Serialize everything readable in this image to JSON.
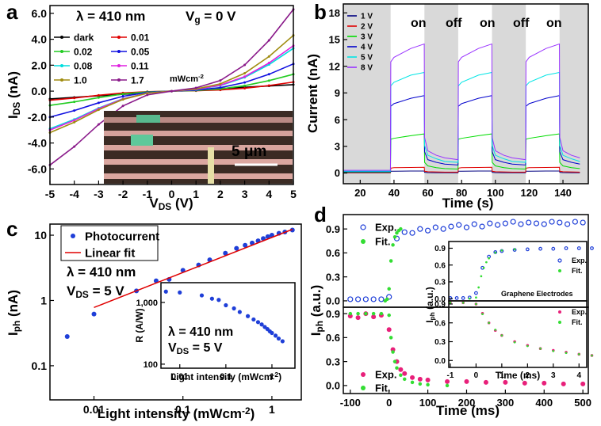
{
  "chart_data": [
    {
      "type": "line",
      "panel": "a",
      "x_label": [
        "V",
        {
          "sub": "DS"
        },
        " (V)"
      ],
      "y_label": [
        "I",
        {
          "sub": "DS"
        },
        " (nA)"
      ],
      "annotations": [
        "λ = 410 nm",
        [
          "V",
          {
            "sub": "g"
          },
          " = 0 V"
        ],
        [
          "mWcm",
          {
            "sup": "-2"
          }
        ],
        "5 μm"
      ],
      "xlim": [
        -5,
        5
      ],
      "ylim": [
        -7.2,
        6.6
      ],
      "xticks": [
        -5,
        -4,
        -3,
        -2,
        -1,
        0,
        1,
        2,
        3,
        4,
        5
      ],
      "yticks": [
        {
          "value": -6,
          "label": "-6.0"
        },
        {
          "value": -4,
          "label": "-4.0"
        },
        {
          "value": -2,
          "label": "-2.0"
        },
        {
          "value": 0,
          "label": "0.0"
        },
        {
          "value": 2,
          "label": "2.0"
        },
        {
          "value": 4,
          "label": "4.0"
        },
        {
          "value": 6,
          "label": "6.0"
        }
      ],
      "x": [
        -5,
        -4,
        -3,
        -2,
        -1,
        0,
        1,
        2,
        3,
        4,
        5
      ],
      "series": [
        {
          "name": "dark",
          "color": "#000000",
          "marker": "dot",
          "values": [
            -0.6,
            -0.48,
            -0.36,
            -0.24,
            -0.12,
            0,
            0.1,
            0.2,
            0.3,
            0.4,
            0.5
          ]
        },
        {
          "name": "0.01",
          "color": "#e00000",
          "marker": "dot",
          "values": [
            -0.7,
            -0.53,
            -0.32,
            -0.14,
            -0.04,
            0,
            0.03,
            0.09,
            0.22,
            0.43,
            0.7
          ]
        },
        {
          "name": "0.02",
          "color": "#22cc22",
          "marker": "dot",
          "values": [
            -1.1,
            -0.83,
            -0.5,
            -0.22,
            -0.06,
            0,
            0.05,
            0.17,
            0.42,
            0.81,
            1.3
          ]
        },
        {
          "name": "0.05",
          "color": "#1010e0",
          "marker": "dot",
          "values": [
            -2.0,
            -1.5,
            -0.9,
            -0.4,
            -0.1,
            0,
            0.08,
            0.27,
            0.67,
            1.3,
            2.1
          ]
        },
        {
          "name": "0.08",
          "color": "#00dede",
          "marker": "dot",
          "values": [
            -2.9,
            -2.18,
            -1.31,
            -0.58,
            -0.15,
            0,
            0.13,
            0.43,
            1.06,
            2.05,
            3.3
          ]
        },
        {
          "name": "0.11",
          "color": "#e020e0",
          "marker": "dot",
          "values": [
            -3.0,
            -2.25,
            -1.35,
            -0.6,
            -0.15,
            0,
            0.14,
            0.46,
            1.12,
            2.17,
            3.5
          ]
        },
        {
          "name": "1.0",
          "color": "#a08c10",
          "marker": "dot",
          "values": [
            -3.2,
            -2.4,
            -1.44,
            -0.64,
            -0.16,
            0,
            0.17,
            0.56,
            1.38,
            2.67,
            4.3
          ]
        },
        {
          "name": "1.7",
          "color": "#8a1a8a",
          "marker": "dot",
          "values": [
            -5.7,
            -4.28,
            -2.57,
            -1.14,
            -0.29,
            0,
            0.25,
            0.82,
            2.02,
            3.91,
            6.3
          ]
        }
      ]
    },
    {
      "type": "line",
      "panel": "b",
      "x_label": "Time (s)",
      "y_label": "Current (nA)",
      "annotations": [
        "on",
        "off",
        "on",
        "off",
        "on"
      ],
      "xlim": [
        10,
        155
      ],
      "ylim": [
        -1.2,
        19
      ],
      "xticks": [
        20,
        40,
        60,
        80,
        100,
        120,
        140
      ],
      "yticks": [
        0,
        3,
        6,
        9,
        12,
        15,
        18
      ],
      "shaded": [
        [
          10,
          38
        ],
        [
          58,
          78
        ],
        [
          98,
          118
        ],
        [
          138,
          155
        ]
      ],
      "shade_color": "#d9d9d9",
      "x": [
        10,
        37.9,
        38.1,
        40,
        50,
        57.9,
        58.1,
        60,
        65,
        70,
        77.9,
        78.1,
        80,
        90,
        97.9,
        98.1,
        100,
        105,
        110,
        117.9,
        118.1,
        120,
        130,
        137.9,
        138.1,
        140,
        145,
        150
      ],
      "series": [
        {
          "name": "1 V",
          "color": "#000080",
          "values": [
            0.02,
            0.02,
            0.2,
            0.2,
            0.22,
            0.22,
            0.08,
            0.05,
            0.04,
            0.04,
            0.03,
            0.2,
            0.2,
            0.22,
            0.22,
            0.08,
            0.05,
            0.04,
            0.04,
            0.03,
            0.2,
            0.2,
            0.22,
            0.22,
            0.08,
            0.05,
            0.04,
            0.04
          ]
        },
        {
          "name": "2 V",
          "color": "#e00000",
          "values": [
            0.05,
            0.05,
            0.55,
            0.6,
            0.62,
            0.65,
            0.2,
            0.15,
            0.12,
            0.1,
            0.1,
            0.55,
            0.6,
            0.62,
            0.65,
            0.2,
            0.15,
            0.12,
            0.1,
            0.1,
            0.55,
            0.6,
            0.62,
            0.65,
            0.2,
            0.15,
            0.12,
            0.1
          ]
        },
        {
          "name": "3 V",
          "color": "#00dd00",
          "values": [
            0.1,
            0.1,
            3.8,
            3.9,
            4.2,
            4.4,
            1.2,
            0.8,
            0.6,
            0.5,
            0.45,
            3.8,
            3.9,
            4.2,
            4.4,
            1.2,
            0.8,
            0.6,
            0.5,
            0.45,
            3.8,
            3.9,
            4.2,
            4.4,
            1.2,
            0.8,
            0.6,
            0.5
          ]
        },
        {
          "name": "4 V",
          "color": "#0000cc",
          "values": [
            0.15,
            0.15,
            7.5,
            7.8,
            8.4,
            8.7,
            2.4,
            1.5,
            1.2,
            1,
            0.9,
            7.5,
            7.8,
            8.4,
            8.7,
            2.4,
            1.5,
            1.2,
            1,
            0.9,
            7.5,
            7.8,
            8.4,
            8.7,
            2.4,
            1.5,
            1.2,
            1
          ]
        },
        {
          "name": "5 V",
          "color": "#00e5e5",
          "values": [
            0.2,
            0.2,
            9.8,
            10.2,
            11,
            11.3,
            3.1,
            2,
            1.6,
            1.3,
            1.2,
            9.8,
            10.2,
            11,
            11.3,
            3.1,
            2,
            1.6,
            1.3,
            1.2,
            9.8,
            10.2,
            11,
            11.3,
            3.1,
            2,
            1.6,
            1.3
          ]
        },
        {
          "name": "8 V",
          "color": "#9933ff",
          "values": [
            0.3,
            0.3,
            12.5,
            13,
            14,
            14.5,
            4,
            2.5,
            2,
            1.7,
            1.5,
            12.5,
            13,
            14,
            14.5,
            4,
            2.5,
            2,
            1.7,
            1.5,
            12.5,
            13,
            14,
            14.5,
            4,
            2.5,
            2,
            1.7
          ]
        }
      ]
    },
    {
      "type": "scatter",
      "panel": "c",
      "x_label": [
        "Light intensity (mWcm",
        {
          "sup": "-2"
        },
        ")"
      ],
      "y_label": [
        "I",
        {
          "sub": "ph"
        },
        " (nA)"
      ],
      "annotations": [
        "λ = 410 nm",
        [
          "V",
          {
            "sub": "DS"
          },
          " = 5 V"
        ]
      ],
      "xlog": true,
      "ylog": true,
      "xlim": [
        0.0032,
        2.14
      ],
      "ylim": [
        0.03,
        14.8
      ],
      "xticks": [
        0.01,
        0.1,
        1
      ],
      "yticks": [
        0.1,
        1,
        10
      ],
      "series": [
        {
          "name": "Photocurrent",
          "color": "#1f3fd8",
          "marker": "circle",
          "line": false,
          "x": [
            0.005,
            0.01,
            0.03,
            0.05,
            0.07,
            0.1,
            0.15,
            0.2,
            0.3,
            0.4,
            0.5,
            0.6,
            0.7,
            0.8,
            0.9,
            1.0,
            1.2,
            1.4,
            1.7
          ],
          "values": [
            0.28,
            0.62,
            1.4,
            2.0,
            2.1,
            2.9,
            3.5,
            4.2,
            5.3,
            6.3,
            7.0,
            7.6,
            8.2,
            8.9,
            9.5,
            10,
            10.7,
            11.2,
            12
          ]
        },
        {
          "name": "Linear fit",
          "color": "#e00000",
          "x": [
            0.01,
            1.7
          ],
          "values": [
            0.78,
            12.3
          ]
        }
      ]
    },
    {
      "type": "scatter",
      "x_label": [
        "Light intensity (mWcm",
        {
          "sup": "-2"
        },
        ")"
      ],
      "y_label": "R (A/W)",
      "annotations": [
        "λ =  410 nm",
        [
          "V",
          {
            "sub": "DS"
          },
          " = 5 V"
        ]
      ],
      "xlog": true,
      "ylog": true,
      "xlim": [
        0.0039,
        3.16
      ],
      "ylim": [
        86,
        2090
      ],
      "xticks": [
        0.01,
        0.1,
        1
      ],
      "yticks": [
        100,
        {
          "value": 1000,
          "label": "1,000"
        }
      ],
      "series": [
        {
          "color": "#1f3fd8",
          "marker": "circle",
          "line": false,
          "x": [
            0.005,
            0.01,
            0.03,
            0.05,
            0.07,
            0.1,
            0.15,
            0.2,
            0.3,
            0.4,
            0.5,
            0.6,
            0.7,
            0.8,
            0.9,
            1.0,
            1.2,
            1.4,
            1.7
          ],
          "values": [
            1500,
            1450,
            1300,
            1150,
            1100,
            900,
            800,
            700,
            600,
            530,
            480,
            440,
            400,
            370,
            340,
            320,
            290,
            260,
            235
          ]
        }
      ]
    },
    {
      "type": "line",
      "panel": "d",
      "y_label": [
        "I",
        {
          "sub": "ph"
        },
        " (a.u.)"
      ],
      "xlim": [
        -118,
        514
      ],
      "ylim": [
        -0.08,
        1.08
      ],
      "yticks": [
        {
          "value": 0,
          "label": "0.0"
        },
        0.3,
        0.6,
        0.9
      ],
      "series": [
        {
          "name": "Exp.",
          "color": "#1f3fd8",
          "marker": "open",
          "line": false,
          "x": [
            -100,
            -80,
            -60,
            -40,
            -20,
            0,
            20,
            40,
            60,
            80,
            100,
            120,
            140,
            160,
            180,
            200,
            220,
            240,
            260,
            280,
            300,
            320,
            340,
            360,
            380,
            400,
            420,
            440,
            460,
            480,
            500
          ],
          "values": [
            0.02,
            0.02,
            0.02,
            0.02,
            0.02,
            0.05,
            0.78,
            0.86,
            0.85,
            0.9,
            0.88,
            0.92,
            0.9,
            0.93,
            0.95,
            0.92,
            0.96,
            0.93,
            0.97,
            0.95,
            0.97,
            0.99,
            0.96,
            0.98,
            0.97,
            0.96,
            0.99,
            0.98,
            0.96,
            0.99,
            0.98
          ]
        },
        {
          "name": "Fit.",
          "color": "#33dd33",
          "marker": "dot",
          "line": false,
          "x": [
            -10,
            -5,
            0,
            5,
            10,
            15,
            20,
            25,
            30
          ],
          "values": [
            0,
            0.02,
            0.15,
            0.5,
            0.7,
            0.8,
            0.85,
            0.88,
            0.9
          ]
        }
      ]
    },
    {
      "type": "line",
      "x_label": "Time (ms)",
      "xlim": [
        -118,
        514
      ],
      "ylim": [
        -0.1,
        0.98
      ],
      "xticks": [
        -100,
        0,
        100,
        200,
        300,
        400,
        500
      ],
      "yticks": [
        {
          "value": 0,
          "label": "0.0"
        },
        0.3,
        0.6,
        0.9
      ],
      "series": [
        {
          "name": "Exp.",
          "color": "#e8207a",
          "marker": "circle",
          "line": false,
          "x": [
            -100,
            -80,
            -60,
            -40,
            -20,
            0,
            10,
            20,
            30,
            40,
            60,
            80,
            100,
            150,
            200,
            250,
            300,
            350,
            400,
            450,
            500
          ],
          "values": [
            0.87,
            0.85,
            0.9,
            0.86,
            0.88,
            0.7,
            0.45,
            0.3,
            0.2,
            0.15,
            0.1,
            0.08,
            0.07,
            0.05,
            0.05,
            0.04,
            0.04,
            0.03,
            0.03,
            0.02,
            0.02
          ]
        },
        {
          "name": "Fit.",
          "color": "#33dd33",
          "marker": "dot",
          "line": false,
          "x": [
            -100,
            -80,
            -60,
            -40,
            -20,
            0,
            5,
            10,
            15,
            20,
            30,
            40,
            60,
            80,
            100,
            150
          ],
          "values": [
            0.9,
            0.9,
            0.9,
            0.9,
            0.9,
            0.88,
            0.6,
            0.42,
            0.3,
            0.22,
            0.13,
            0.08,
            0.04,
            0.02,
            0.01,
            0
          ]
        }
      ]
    },
    {
      "type": "line",
      "y_label": [
        "I",
        {
          "sub": "ph"
        },
        " (a.u.)"
      ],
      "annotations": [
        "Graphene Electrodes"
      ],
      "xlim": [
        -1.06,
        4.3
      ],
      "ylim": [
        -0.04,
        1.02
      ],
      "yticks": [
        {
          "value": 0,
          "label": "0.0"
        },
        0.3,
        0.6,
        0.9
      ],
      "series": [
        {
          "name": "Exp.",
          "color": "#1f3fd8",
          "marker": "open",
          "line": false,
          "x": [
            -1,
            -0.75,
            -0.5,
            -0.25,
            0,
            0.25,
            0.5,
            0.75,
            1,
            1.5,
            2,
            2.5,
            3,
            3.5,
            4,
            4.5
          ],
          "values": [
            0.01,
            0.01,
            0.01,
            0.02,
            0.1,
            0.55,
            0.75,
            0.83,
            0.85,
            0.87,
            0.88,
            0.89,
            0.89,
            0.9,
            0.9,
            0.9
          ]
        },
        {
          "name": "Fit.",
          "color": "#33dd33",
          "marker": "dot",
          "line": false,
          "x": [
            -0.25,
            0,
            0.1,
            0.2,
            0.3,
            0.4,
            0.5,
            0.75,
            1,
            1.5
          ],
          "values": [
            0,
            0.02,
            0.2,
            0.4,
            0.55,
            0.65,
            0.72,
            0.82,
            0.86,
            0.88
          ]
        }
      ]
    },
    {
      "type": "line",
      "x_label": "Time (ms)",
      "xlim": [
        -1.06,
        4.3
      ],
      "ylim": [
        -0.11,
        0.95
      ],
      "xticks": [
        -1,
        0,
        1,
        2,
        3,
        4
      ],
      "yticks": [
        {
          "value": 0,
          "label": "0.0"
        },
        0.3,
        0.6,
        0.9
      ],
      "series": [
        {
          "name": "Exp.",
          "color": "#e8207a",
          "marker": "circle",
          "line": false,
          "x": [
            -1,
            -0.5,
            0,
            0.25,
            0.5,
            0.75,
            1,
            1.5,
            2,
            2.5,
            3,
            3.5,
            4,
            4.5
          ],
          "values": [
            0.92,
            0.92,
            0.9,
            0.75,
            0.6,
            0.48,
            0.4,
            0.3,
            0.24,
            0.19,
            0.16,
            0.13,
            0.1,
            0.08
          ]
        },
        {
          "name": "Fit.",
          "color": "#33dd33",
          "marker": "dot",
          "line": false,
          "x": [
            -1,
            -0.5,
            0,
            0.25,
            0.5,
            0.75,
            1,
            1.5,
            2,
            2.5,
            3,
            3.5,
            4,
            4.5
          ],
          "values": [
            0.92,
            0.92,
            0.9,
            0.74,
            0.6,
            0.49,
            0.4,
            0.29,
            0.23,
            0.19,
            0.15,
            0.12,
            0.1,
            0.08
          ]
        }
      ]
    }
  ]
}
